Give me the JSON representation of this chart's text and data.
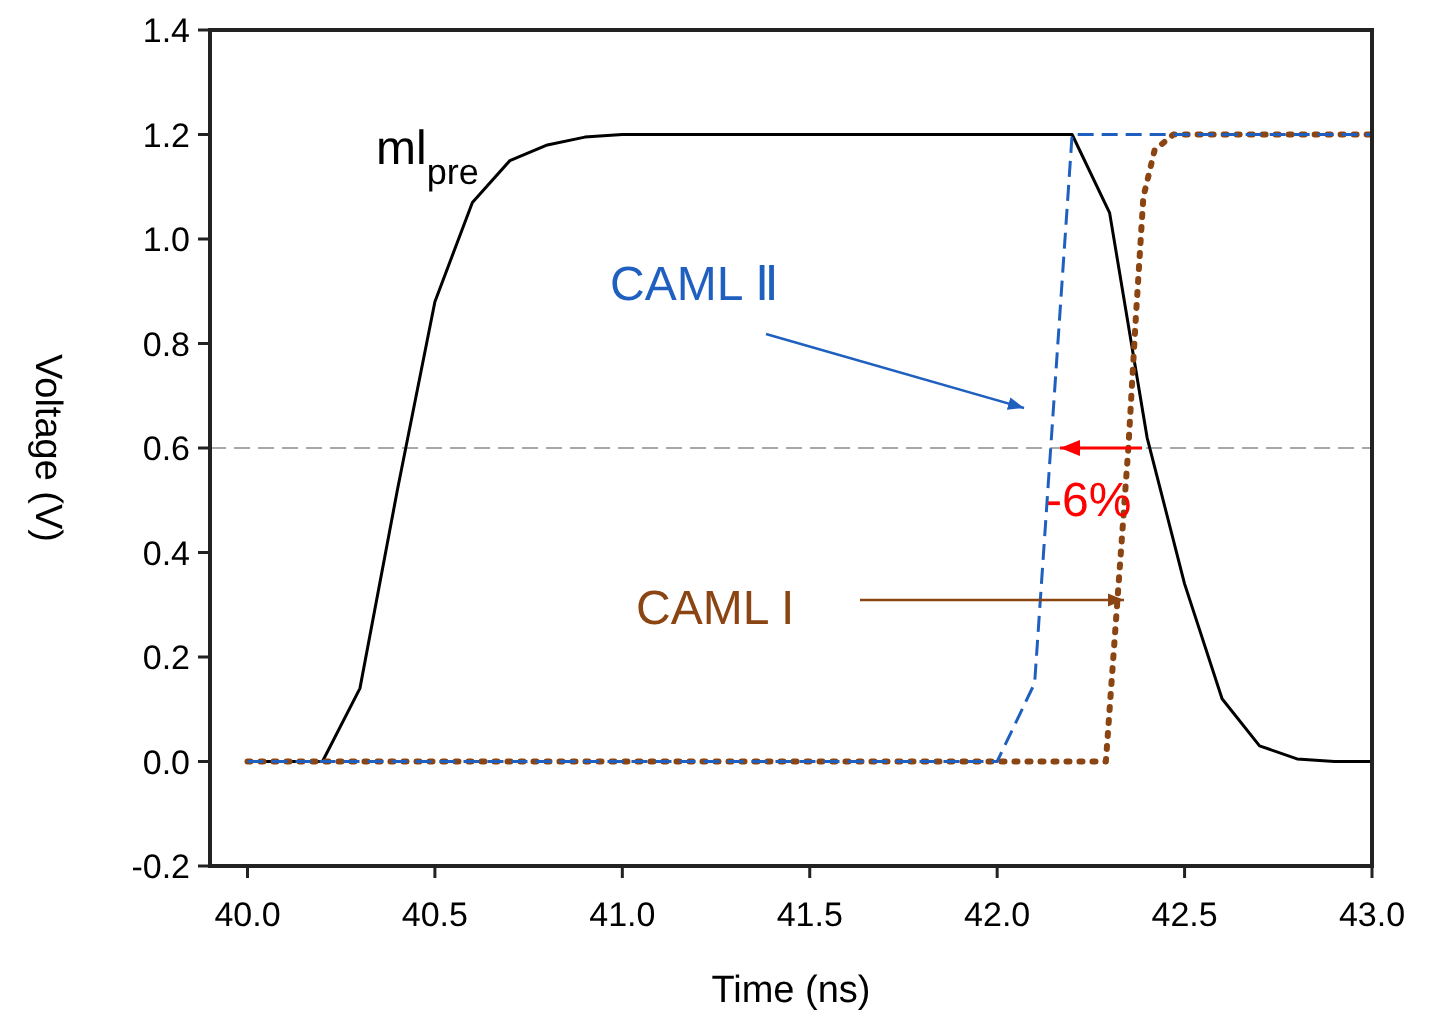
{
  "chart_data": {
    "type": "line",
    "xlabel": "Time (ns)",
    "ylabel": "Voltage (V)",
    "xlim": [
      39.9,
      43.0
    ],
    "ylim": [
      -0.2,
      1.4
    ],
    "xticks": [
      {
        "value": 40,
        "label": "40.0"
      },
      {
        "value": 40.5,
        "label": "40.5"
      },
      {
        "value": 41,
        "label": "41.0"
      },
      {
        "value": 41.5,
        "label": "41.5"
      },
      {
        "value": 42,
        "label": "42.0"
      },
      {
        "value": 42.5,
        "label": "42.5"
      },
      {
        "value": 43,
        "label": "43.0"
      }
    ],
    "yticks": [
      {
        "value": -0.2,
        "label": "-0.2"
      },
      {
        "value": 0,
        "label": "0.0"
      },
      {
        "value": 0.2,
        "label": "0.2"
      },
      {
        "value": 0.4,
        "label": "0.4"
      },
      {
        "value": 0.6,
        "label": "0.6"
      },
      {
        "value": 0.8,
        "label": "0.8"
      },
      {
        "value": 1.0,
        "label": "1.0"
      },
      {
        "value": 1.2,
        "label": "1.2"
      },
      {
        "value": 1.4,
        "label": "1.4"
      }
    ],
    "grid": false,
    "marker": "none",
    "series": [
      {
        "name": "ml$_{pre}$",
        "color": "#000000",
        "line_style": "solid",
        "x": [
          40,
          40.2,
          40.3,
          40.4,
          40.5,
          40.6,
          40.7,
          40.8,
          40.9,
          41,
          42.2,
          42.3,
          42.4,
          42.5,
          42.6,
          42.7,
          42.8,
          42.9,
          43
        ],
        "values": [
          0,
          0,
          0.14,
          0.52,
          0.88,
          1.07,
          1.15,
          1.18,
          1.195,
          1.2,
          1.2,
          1.05,
          0.62,
          0.34,
          0.12,
          0.03,
          0.005,
          0,
          0
        ]
      },
      {
        "name": "CAML Ⅱ",
        "color": "#1f5fbf",
        "line_style": "dashed",
        "x": [
          40,
          42,
          42.1,
          42.2,
          43
        ],
        "values": [
          0,
          0,
          0.15,
          1.2,
          1.2
        ]
      },
      {
        "name": "CAML I",
        "color": "#8b4513",
        "line_style": "dotted",
        "x": [
          40,
          42.29,
          42.31,
          42.33,
          42.35,
          42.37,
          42.39,
          42.42,
          42.47,
          42.5,
          43
        ],
        "values": [
          0,
          0,
          0.2,
          0.4,
          0.6,
          0.85,
          1.08,
          1.17,
          1.2,
          1.2,
          1.2
        ]
      }
    ],
    "ref_lines": [
      {
        "axis": "y",
        "value": 0.6,
        "color": "#aaaaaa",
        "line_style": "dashed"
      }
    ],
    "annotations": [
      "-6%"
    ]
  }
}
